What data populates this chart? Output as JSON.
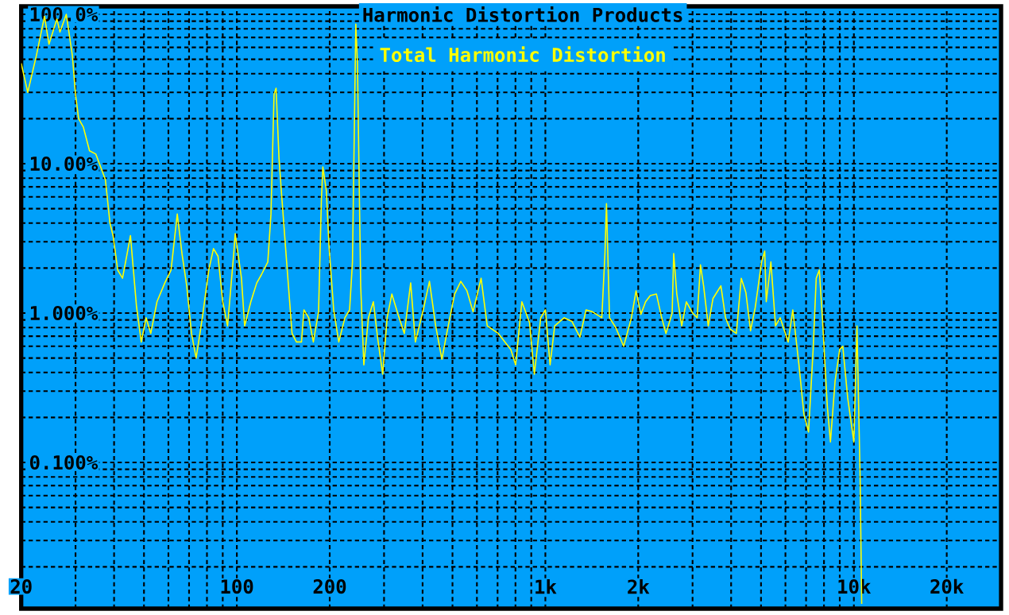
{
  "chart_data": {
    "type": "line",
    "title": "Harmonic Distortion Products",
    "log": "xy",
    "grid": true,
    "legend": "top",
    "xlim": [
      20,
      30000
    ],
    "ylim": [
      0.0105,
      113
    ],
    "xticks": [
      20,
      {
        "value": 30,
        "label": null
      },
      {
        "value": 40,
        "label": null
      },
      {
        "value": 50,
        "label": null
      },
      {
        "value": 60,
        "label": null
      },
      {
        "value": 70,
        "label": null
      },
      {
        "value": 80,
        "label": null
      },
      {
        "value": 90,
        "label": null
      },
      100,
      200,
      {
        "value": 300,
        "label": null
      },
      {
        "value": 400,
        "label": null
      },
      {
        "value": 500,
        "label": null
      },
      {
        "value": 600,
        "label": null
      },
      {
        "value": 700,
        "label": null
      },
      {
        "value": 800,
        "label": null
      },
      {
        "value": 900,
        "label": null
      },
      {
        "value": 1000,
        "label": "1k"
      },
      {
        "value": 2000,
        "label": "2k"
      },
      {
        "value": 3000,
        "label": null
      },
      {
        "value": 4000,
        "label": null
      },
      {
        "value": 5000,
        "label": null
      },
      {
        "value": 6000,
        "label": null
      },
      {
        "value": 7000,
        "label": null
      },
      {
        "value": 8000,
        "label": null
      },
      {
        "value": 9000,
        "label": null
      },
      {
        "value": 10000,
        "label": "10k"
      },
      {
        "value": 20000,
        "label": "20k"
      }
    ],
    "yticks": [
      {
        "value": 0.02,
        "label": null
      },
      {
        "value": 0.03,
        "label": null
      },
      {
        "value": 0.04,
        "label": null
      },
      {
        "value": 0.05,
        "label": null
      },
      {
        "value": 0.06,
        "label": null
      },
      {
        "value": 0.07,
        "label": null
      },
      {
        "value": 0.08,
        "label": null
      },
      {
        "value": 0.09,
        "label": null
      },
      {
        "value": 0.1,
        "label": "0.100%"
      },
      {
        "value": 0.2,
        "label": null
      },
      {
        "value": 0.3,
        "label": null
      },
      {
        "value": 0.4,
        "label": null
      },
      {
        "value": 0.5,
        "label": null
      },
      {
        "value": 0.6,
        "label": null
      },
      {
        "value": 0.7,
        "label": null
      },
      {
        "value": 0.8,
        "label": null
      },
      {
        "value": 0.9,
        "label": null
      },
      {
        "value": 1,
        "label": "1.000%"
      },
      {
        "value": 2,
        "label": null
      },
      {
        "value": 3,
        "label": null
      },
      {
        "value": 4,
        "label": null
      },
      {
        "value": 5,
        "label": null
      },
      {
        "value": 6,
        "label": null
      },
      {
        "value": 7,
        "label": null
      },
      {
        "value": 8,
        "label": null
      },
      {
        "value": 9,
        "label": null
      },
      {
        "value": 10,
        "label": "10.00%"
      },
      {
        "value": 20,
        "label": null
      },
      {
        "value": 30,
        "label": null
      },
      {
        "value": 40,
        "label": null
      },
      {
        "value": 50,
        "label": null
      },
      {
        "value": 60,
        "label": null
      },
      {
        "value": 70,
        "label": null
      },
      {
        "value": 80,
        "label": null
      },
      {
        "value": 90,
        "label": null
      },
      {
        "value": 100,
        "label": "100.0%"
      }
    ],
    "series": [
      {
        "name": "Total Harmonic Distortion",
        "color": "#ffff00",
        "x": [
          20,
          21,
          22.4,
          23.8,
          24.6,
          26.1,
          26.7,
          28,
          29.3,
          30,
          30.7,
          31.8,
          33.3,
          34.9,
          36.2,
          37.5,
          38.8,
          39.7,
          41.1,
          42.6,
          44.1,
          45.2,
          46.2,
          47.3,
          49,
          50.8,
          52.6,
          55.1,
          58.4,
          61.2,
          64.1,
          66.4,
          68.8,
          71.3,
          73.8,
          77.3,
          81.1,
          84,
          86.9,
          90,
          93.3,
          97.7,
          98.8,
          103.5,
          106,
          111,
          116,
          120,
          126,
          129,
          132,
          134,
          137,
          140,
          145,
          151,
          156,
          162,
          165,
          171,
          177,
          184,
          188,
          190,
          195,
          199,
          206,
          214,
          224,
          232,
          237,
          243,
          246,
          252,
          258,
          267,
          277,
          286,
          297,
          307,
          318,
          333,
          349,
          366,
          379,
          402,
          421,
          441,
          462,
          479,
          508,
          532,
          557,
          583,
          619,
          648,
          704,
          773,
          801,
          839,
          889,
          921,
          966,
          1000,
          1036,
          1072,
          1151,
          1219,
          1294,
          1355,
          1420,
          1524,
          1560,
          1578,
          1614,
          1691,
          1794,
          1901,
          1968,
          2040,
          2113,
          2188,
          2291,
          2377,
          2460,
          2576,
          2606,
          2667,
          2767,
          2864,
          3000,
          3105,
          3182,
          3258,
          3373,
          3493,
          3707,
          3837,
          3972,
          4159,
          4315,
          4467,
          4624,
          4786,
          5023,
          5140,
          5200,
          5383,
          5572,
          5770,
          6124,
          6339,
          6637,
          6887,
          7129,
          7379,
          7550,
          7727,
          7907,
          8199,
          8395,
          8690,
          8995,
          9204,
          9550,
          10000,
          10233,
          10476,
          10600
        ],
        "values": [
          47,
          30,
          53,
          97,
          63,
          93,
          76,
          100,
          53,
          29,
          20,
          17.6,
          12.2,
          11.6,
          9.5,
          7.8,
          4.0,
          3.3,
          1.94,
          1.71,
          2.5,
          3.3,
          1.94,
          1.1,
          0.64,
          0.93,
          0.73,
          1.19,
          1.59,
          1.94,
          4.6,
          2.5,
          1.52,
          0.73,
          0.5,
          0.93,
          1.94,
          2.7,
          2.4,
          1.19,
          0.82,
          2.5,
          3.4,
          1.71,
          0.82,
          1.19,
          1.59,
          1.8,
          2.2,
          4.6,
          29,
          32,
          10.8,
          5.8,
          2.2,
          0.73,
          0.64,
          0.64,
          1.05,
          0.93,
          0.64,
          1.02,
          5.8,
          9.5,
          6.6,
          2.8,
          1.05,
          0.64,
          0.93,
          1.05,
          2.2,
          86,
          47,
          1.52,
          0.45,
          0.93,
          1.19,
          0.68,
          0.39,
          0.93,
          1.34,
          0.98,
          0.73,
          1.59,
          0.64,
          1.05,
          1.63,
          0.82,
          0.49,
          0.73,
          1.34,
          1.63,
          1.41,
          1.02,
          1.71,
          0.82,
          0.73,
          0.57,
          0.45,
          1.19,
          0.86,
          0.39,
          0.93,
          1.05,
          0.45,
          0.82,
          0.93,
          0.88,
          0.69,
          1.05,
          1.02,
          0.93,
          2.5,
          5.4,
          0.93,
          0.8,
          0.6,
          0.93,
          1.41,
          0.98,
          1.19,
          1.31,
          1.34,
          0.95,
          0.73,
          1.0,
          2.5,
          1.34,
          0.82,
          1.19,
          1.0,
          0.93,
          2.1,
          1.52,
          0.82,
          1.25,
          1.52,
          0.93,
          0.78,
          0.73,
          1.71,
          1.37,
          0.76,
          1.08,
          2.2,
          2.6,
          1.19,
          2.2,
          0.82,
          0.93,
          0.64,
          1.05,
          0.45,
          0.21,
          0.16,
          0.57,
          1.71,
          1.94,
          0.93,
          0.24,
          0.137,
          0.35,
          0.57,
          0.6,
          0.27,
          0.137,
          0.82,
          0.08,
          0.0113
        ]
      }
    ]
  }
}
